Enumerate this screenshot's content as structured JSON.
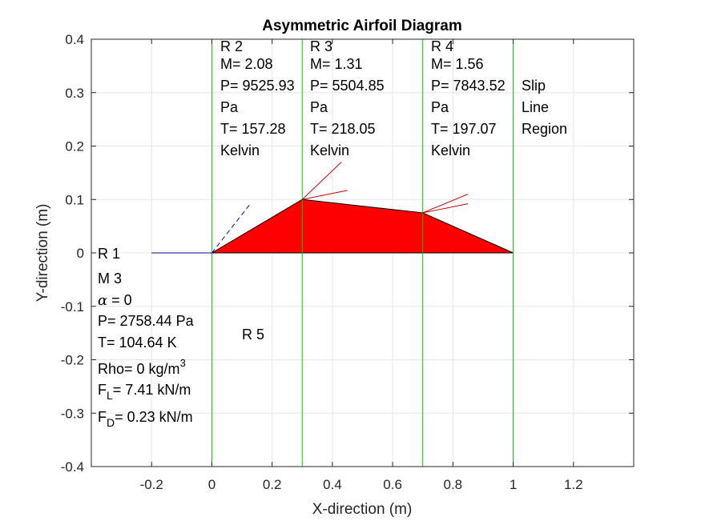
{
  "chart_data": {
    "type": "line",
    "title": "Asymmetric Airfoil Diagram",
    "xlabel": "X-direction (m)",
    "ylabel": "Y-direction (m)",
    "xlim": [
      -0.4,
      1.4
    ],
    "ylim": [
      -0.4,
      0.4
    ],
    "xticks": [
      -0.2,
      0,
      0.2,
      0.4,
      0.6,
      0.8,
      1,
      1.2
    ],
    "xtick_labels": [
      "-0.2",
      "0",
      "0.2",
      "0.4",
      "0.6",
      "0.8",
      "1",
      "1.2"
    ],
    "yticks": [
      0.4,
      0.3,
      0.2,
      0.1,
      0,
      -0.1,
      -0.2,
      -0.3,
      -0.4
    ],
    "ytick_labels": [
      "0.4",
      "0.3",
      "0.2",
      "0.1",
      "0",
      "-0.1",
      "-0.2",
      "-0.3",
      "-0.4"
    ],
    "grid": true,
    "colors": {
      "airfoil_fill": "#ff0000",
      "airfoil_edge": "#000000",
      "boundary_lines": "#00cc00",
      "shock_lines": "#cc0000",
      "freestream": "#0000aa",
      "mach_wave": "#0000cc"
    },
    "airfoil": {
      "x": [
        0,
        0.3,
        0.7,
        1
      ],
      "y": [
        0,
        0.1,
        0.075,
        0
      ]
    },
    "vertical_lines_x": [
      0,
      0.3,
      0.7,
      1
    ],
    "freestream_line": {
      "x": [
        -0.2,
        0
      ],
      "y": [
        0,
        0
      ]
    },
    "mach_wave_dashed": {
      "x": [
        0,
        0.125
      ],
      "y": [
        0,
        0.09
      ]
    },
    "shock_lines": [
      {
        "x": [
          0.3,
          0.43
        ],
        "y": [
          0.1,
          0.17
        ]
      },
      {
        "x": [
          0.3,
          0.45
        ],
        "y": [
          0.1,
          0.117
        ]
      },
      {
        "x": [
          0.7,
          0.85
        ],
        "y": [
          0.075,
          0.11
        ]
      },
      {
        "x": [
          0.7,
          0.85
        ],
        "y": [
          0.075,
          0.092
        ]
      }
    ],
    "regions": {
      "r2": {
        "name": "R 2",
        "mach": "M= 2.08",
        "pressure": "P= 9525.93",
        "pressure_unit": "Pa",
        "temperature": "T= 157.28",
        "temperature_unit": "Kelvin"
      },
      "r3": {
        "name": "R 3",
        "mach": "M= 1.31",
        "pressure": "P= 5504.85",
        "pressure_unit": "Pa",
        "temperature": "T= 218.05",
        "temperature_unit": "Kelvin"
      },
      "r4": {
        "name": "R 4",
        "mach": "M= 1.56",
        "pressure": "P= 7843.52",
        "pressure_unit": "Pa",
        "temperature": "T= 197.07",
        "temperature_unit": "Kelvin"
      },
      "slip": {
        "line1": "Slip",
        "line2": "Line",
        "line3": "Region"
      },
      "r1": {
        "name": "R 1",
        "mach": "M 3",
        "alpha_symbol": "α",
        "alpha_value": " =  0",
        "pressure": "P= 2758.44 Pa",
        "temperature": "T= 104.64 K",
        "rho": "Rho= 0 kg/m",
        "rho_sup": "3",
        "lift_main": "F",
        "lift_sub": "L",
        "lift_value": "= 7.41 kN/m",
        "drag_main": "F",
        "drag_sub": "D",
        "drag_value": "= 0.23 kN/m"
      },
      "r5": {
        "name": "R 5"
      }
    }
  }
}
